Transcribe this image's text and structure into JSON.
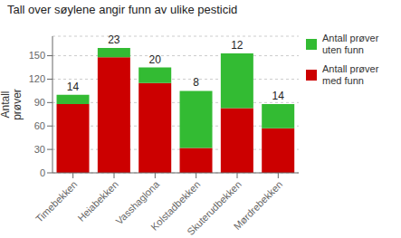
{
  "chart_data": {
    "type": "bar",
    "title": "Tall over søylene angir funn av ulike pesticid",
    "y_label": "Antall\nprøver",
    "categories": [
      "Timebekken",
      "Heiabekken",
      "Vasshaglona",
      "Kolstadbekken",
      "Skuterudbekken",
      "Mørdrebekken"
    ],
    "series": [
      {
        "name": "Antall prøver\nmed funn",
        "color": "#cc0000",
        "values": [
          88,
          148,
          115,
          32,
          83,
          57
        ]
      },
      {
        "name": "Antall prøver\nuten funn",
        "color": "#33bb33",
        "values": [
          12,
          12,
          20,
          73,
          70,
          31
        ]
      }
    ],
    "annotations": [
      14,
      23,
      20,
      8,
      12,
      14
    ],
    "stacked": true,
    "ylim": [
      0,
      175
    ],
    "yticks": [
      0,
      30,
      60,
      90,
      120,
      150
    ],
    "grid": true,
    "legend": "upper right"
  }
}
